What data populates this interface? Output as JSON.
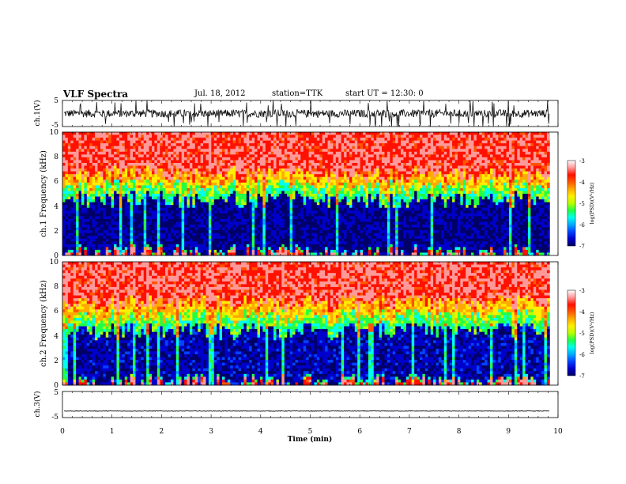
{
  "header": {
    "title": "VLF Spectra",
    "date": "Jul. 18, 2012",
    "station": "station=TTK",
    "start": "start UT = 12:30: 0"
  },
  "colors": {
    "trace": "#111111",
    "colormap": [
      "#000066",
      "#0000cc",
      "#0044ff",
      "#00aaff",
      "#00ffee",
      "#22ff44",
      "#bbff00",
      "#ffee00",
      "#ffaa00",
      "#ff5500",
      "#ff1100",
      "#ff9999",
      "#ffffff"
    ]
  },
  "chart_data": [
    {
      "type": "line",
      "name": "ch.1 waveform",
      "ylabel": "ch.1(V)",
      "ylim": [
        -5,
        5
      ],
      "yticks": [
        "5",
        "-5"
      ],
      "xlim": [
        0,
        10
      ],
      "baseline_v": 0,
      "noise_amplitude_v": 1.5,
      "spike_amplitude_v": 5
    },
    {
      "type": "heatmap",
      "name": "ch.1 spectrogram",
      "ylabel": "ch.1 Frequency (kHz)",
      "ylim": [
        0,
        10
      ],
      "yticks": [
        "0",
        "2",
        "4",
        "6",
        "8",
        "10"
      ],
      "xlim": [
        0,
        9.83
      ],
      "colorbar": {
        "label": "log(PSD)(V²/Hz)",
        "range": [
          -7,
          -3
        ],
        "ticks": [
          "-3",
          "-4",
          "-5",
          "-6",
          "-7"
        ]
      },
      "bands_khz": [
        {
          "from": 0,
          "to": 0.2,
          "log_psd": -5.3
        },
        {
          "from": 0.2,
          "to": 4.5,
          "log_psd": -6.7
        },
        {
          "from": 4.5,
          "to": 5.5,
          "log_psd": -5.2
        },
        {
          "from": 5.5,
          "to": 6.5,
          "log_psd": -4.3
        },
        {
          "from": 6.5,
          "to": 10,
          "log_psd": -3.4
        }
      ]
    },
    {
      "type": "heatmap",
      "name": "ch.2 spectrogram",
      "ylabel": "ch.2 Frequency (kHz)",
      "ylim": [
        0,
        10
      ],
      "yticks": [
        "0",
        "2",
        "4",
        "6",
        "8",
        "10"
      ],
      "xlim": [
        0,
        9.83
      ],
      "colorbar": {
        "label": "log(PSD)(V²/Hz)",
        "range": [
          -7,
          -3
        ],
        "ticks": [
          "-3",
          "-4",
          "-5",
          "-6",
          "-7"
        ]
      },
      "bands_khz": [
        {
          "from": 0,
          "to": 0.2,
          "log_psd": -5.3
        },
        {
          "from": 0.2,
          "to": 4.4,
          "log_psd": -6.6
        },
        {
          "from": 4.4,
          "to": 5.5,
          "log_psd": -5.2
        },
        {
          "from": 5.5,
          "to": 6.6,
          "log_psd": -4.3
        },
        {
          "from": 6.6,
          "to": 10,
          "log_psd": -3.4
        }
      ]
    },
    {
      "type": "line",
      "name": "ch.3 waveform",
      "ylabel": "ch.3(V)",
      "ylim": [
        -5,
        5
      ],
      "yticks": [
        "5",
        "-5"
      ],
      "xlim": [
        0,
        10
      ],
      "baseline_v": -2.5,
      "noise_amplitude_v": 0.1,
      "spike_amplitude_v": 0
    }
  ],
  "xaxis": {
    "label": "Time (min)",
    "ticks": [
      "0",
      "1",
      "2",
      "3",
      "4",
      "5",
      "6",
      "7",
      "8",
      "9",
      "10"
    ],
    "range": [
      0,
      10
    ]
  }
}
